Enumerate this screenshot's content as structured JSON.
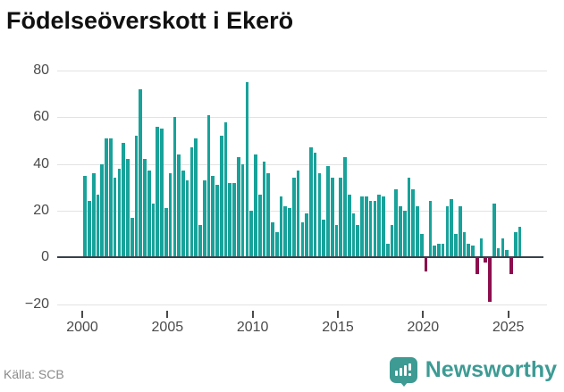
{
  "header": {
    "title": "Födelseöverskott i Ekerö"
  },
  "footer": {
    "source": "Källa: SCB",
    "brand": "Newsworthy",
    "logo_icon": "newsworthy-bar-chart-bubble-icon"
  },
  "chart_data": {
    "type": "bar",
    "title": "Födelseöverskott i Ekerö",
    "xlabel": "",
    "ylabel": "",
    "frequency": "quarterly",
    "grid": true,
    "ylim": [
      -25,
      85
    ],
    "y_ticks": [
      80,
      60,
      40,
      20,
      0,
      -20
    ],
    "y_tick_labels": [
      "80",
      "60",
      "40",
      "20",
      "0",
      "−20"
    ],
    "x_tick_years": [
      2000,
      2005,
      2010,
      2015,
      2020,
      2025
    ],
    "positive_color": "#18a29a",
    "negative_color": "#8c0e4e",
    "axis_color": "#37404a",
    "series": [
      {
        "year": 2000,
        "values": [
          35,
          24,
          36,
          27
        ]
      },
      {
        "year": 2001,
        "values": [
          40,
          51,
          51,
          34
        ]
      },
      {
        "year": 2002,
        "values": [
          38,
          49,
          42,
          17
        ]
      },
      {
        "year": 2003,
        "values": [
          52,
          72,
          42,
          37
        ]
      },
      {
        "year": 2004,
        "values": [
          23,
          56,
          55,
          21
        ]
      },
      {
        "year": 2005,
        "values": [
          36,
          60,
          44,
          37
        ]
      },
      {
        "year": 2006,
        "values": [
          33,
          47,
          51,
          14
        ]
      },
      {
        "year": 2007,
        "values": [
          33,
          61,
          35,
          31
        ]
      },
      {
        "year": 2008,
        "values": [
          52,
          58,
          32,
          32
        ]
      },
      {
        "year": 2009,
        "values": [
          43,
          40,
          75,
          20
        ]
      },
      {
        "year": 2010,
        "values": [
          44,
          27,
          41,
          36
        ]
      },
      {
        "year": 2011,
        "values": [
          15,
          11,
          26,
          22
        ]
      },
      {
        "year": 2012,
        "values": [
          21,
          34,
          37,
          15
        ]
      },
      {
        "year": 2013,
        "values": [
          19,
          47,
          45,
          36
        ]
      },
      {
        "year": 2014,
        "values": [
          16,
          39,
          34,
          14
        ]
      },
      {
        "year": 2015,
        "values": [
          34,
          43,
          27,
          19
        ]
      },
      {
        "year": 2016,
        "values": [
          14,
          26,
          26,
          24
        ]
      },
      {
        "year": 2017,
        "values": [
          24,
          27,
          26,
          6
        ]
      },
      {
        "year": 2018,
        "values": [
          14,
          29,
          22,
          20
        ]
      },
      {
        "year": 2019,
        "values": [
          34,
          29,
          22,
          10
        ]
      },
      {
        "year": 2020,
        "values": [
          -6,
          24,
          5,
          6
        ]
      },
      {
        "year": 2021,
        "values": [
          6,
          22,
          25,
          10
        ]
      },
      {
        "year": 2022,
        "values": [
          22,
          11,
          6,
          5
        ]
      },
      {
        "year": 2023,
        "values": [
          -7,
          8,
          -2,
          -19
        ]
      },
      {
        "year": 2024,
        "values": [
          23,
          4,
          8,
          3
        ]
      },
      {
        "year": 2025,
        "values": [
          -7,
          11,
          13
        ]
      }
    ]
  }
}
